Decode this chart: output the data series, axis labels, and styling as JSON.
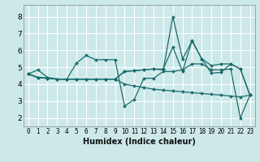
{
  "xlabel": "Humidex (Indice chaleur)",
  "bg_color": "#cce8e8",
  "grid_color": "#ffffff",
  "line_color": "#1a6b6b",
  "xlim": [
    -0.5,
    23.5
  ],
  "ylim": [
    1.5,
    8.7
  ],
  "xticks": [
    0,
    1,
    2,
    3,
    4,
    5,
    6,
    7,
    8,
    9,
    10,
    11,
    12,
    13,
    14,
    15,
    16,
    17,
    18,
    19,
    20,
    21,
    22,
    23
  ],
  "yticks": [
    2,
    3,
    4,
    5,
    6,
    7,
    8
  ],
  "series": [
    [
      4.6,
      4.85,
      4.4,
      4.3,
      4.3,
      5.25,
      5.7,
      5.45,
      5.45,
      5.45,
      2.7,
      3.1,
      4.35,
      4.35,
      4.75,
      4.75,
      4.85,
      5.2,
      5.2,
      4.85,
      4.85,
      4.9,
      2.0,
      3.35
    ],
    [
      4.6,
      4.4,
      4.35,
      4.3,
      4.3,
      4.3,
      4.3,
      4.3,
      4.3,
      4.3,
      4.0,
      3.9,
      3.8,
      3.7,
      3.65,
      3.6,
      3.55,
      3.5,
      3.45,
      3.4,
      3.35,
      3.3,
      3.25,
      3.35
    ],
    [
      4.6,
      4.4,
      4.35,
      4.3,
      4.3,
      4.3,
      4.3,
      4.3,
      4.3,
      4.3,
      4.75,
      4.8,
      4.85,
      4.9,
      4.85,
      8.0,
      5.5,
      6.55,
      5.5,
      5.1,
      5.2,
      5.2,
      4.9,
      3.35
    ],
    [
      4.6,
      4.4,
      4.35,
      4.3,
      4.3,
      4.3,
      4.3,
      4.3,
      4.3,
      4.3,
      4.75,
      4.8,
      4.85,
      4.9,
      4.9,
      6.2,
      4.75,
      6.6,
      5.5,
      4.65,
      4.7,
      5.2,
      4.9,
      3.35
    ]
  ],
  "xlabel_fontsize": 7,
  "tick_fontsize": 5.5,
  "ytick_fontsize": 6.5
}
